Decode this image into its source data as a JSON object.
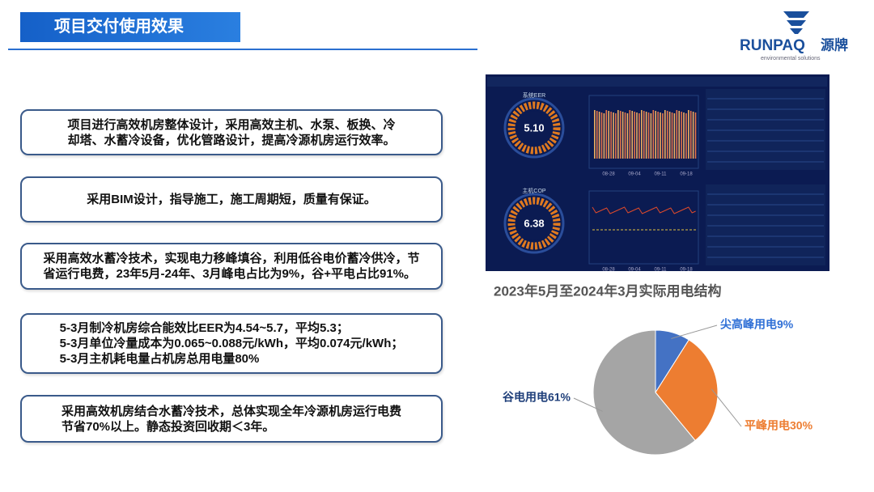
{
  "header": {
    "title": "项目交付使用效果"
  },
  "logo": {
    "brand": "RUNPAQ",
    "brand_cn": "源牌",
    "tagline": "environmental solutions"
  },
  "boxes": [
    {
      "lines": [
        "项目进行高效机房整体设计，采用高效主机、水泵、板换、冷",
        "却塔、水蓄冷设备，优化管路设计，提高冷源机房运行效率。"
      ]
    },
    {
      "lines": [
        "采用BIM设计，指导施工，施工周期短，质量有保证。"
      ]
    },
    {
      "lines": [
        "采用高效水蓄冷技术，实现电力移峰填谷，利用低谷电价蓄冷供冷，节",
        "省运行电费，23年5月-24年、3月峰电占比为9%，谷+平电占比91%。"
      ]
    },
    {
      "lines": [
        "5-3月制冷机房综合能效比EER为4.54~5.7，平均5.3；",
        "5-3月单位冷量成本为0.065~0.088元/kWh，平均0.074元/kWh；",
        "5-3月主机耗电量占机房总用电量80%"
      ]
    },
    {
      "lines": [
        "采用高效机房结合水蓄冷技术，总体实现全年冷源机房运行电费",
        "节省70%以上。静态投资回收期＜3年。"
      ]
    }
  ],
  "dashboard": {
    "panels": [
      {
        "label": "系统EER",
        "value": "5.10",
        "x_labels": [
          "08-28",
          "09-04",
          "09-11",
          "09-18"
        ]
      },
      {
        "label": "主机COP",
        "value": "6.38",
        "x_labels": [
          "08-28",
          "09-04",
          "09-11",
          "09-18"
        ]
      }
    ]
  },
  "chart_data": {
    "type": "pie",
    "title": "2023年5月至2024年3月实际用电结构",
    "values": [
      9,
      30,
      61
    ],
    "value_labels": [
      "尖高峰用电9%",
      "平峰用电30%",
      "谷电用电61%"
    ],
    "colors": [
      "#4472c4",
      "#ed7d31",
      "#a5a5a5"
    ],
    "label_colors": [
      "#2f6fd6",
      "#ed7d31",
      "#1f3f7a"
    ]
  }
}
